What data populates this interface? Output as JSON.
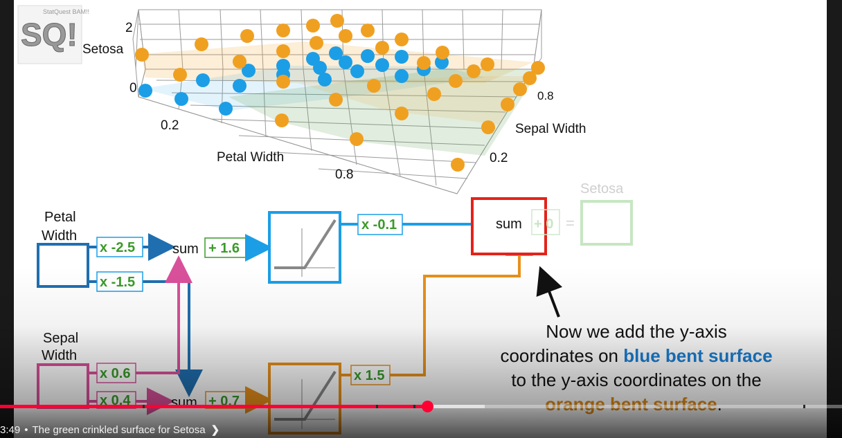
{
  "logo": {
    "text": "SQ!",
    "small_text": "StatQuest BAM!!"
  },
  "plot3d": {
    "z_tick_top": "2",
    "z_tick_bottom": "0",
    "z_label": "Setosa",
    "x_tick_1": "0.2",
    "x_tick_2": "0.8",
    "x_label": "Petal Width",
    "y_tick_1": "0.2",
    "y_tick_2": "0.8",
    "y_label": "Sepal Width"
  },
  "network": {
    "input_petal_label_1": "Petal",
    "input_petal_label_2": "Width",
    "input_sepal_label_1": "Sepal",
    "input_sepal_label_2": "Width",
    "w_petal_top": "x -2.5",
    "w_petal_bottom": "x -1.5",
    "w_sepal_top": "x 0.6",
    "w_sepal_bottom": "x 0.4",
    "sum_top": "sum",
    "bias_top": "+ 1.6",
    "sum_bottom": "sum",
    "bias_bottom": "+ 0.7",
    "w_out_top": "x -0.1",
    "w_out_bottom": "x 1.5",
    "final_sum": "sum",
    "final_bias": "+ 0",
    "equals": "=",
    "output_label": "Setosa"
  },
  "annotation": {
    "line1": "Now we add the y-axis",
    "line2_a": "coordinates on ",
    "line2_b": "blue bent surface",
    "line3": "to the y-axis coordinates on the",
    "line4_a": "orange bent surface",
    "line4_b": "."
  },
  "player": {
    "time": "3:49",
    "bullet": "•",
    "chapter_title": "The green crinkled surface for Setosa",
    "progress_fraction": 0.508
  },
  "colors": {
    "blue": "#1b9ee6",
    "orange": "#f0a020",
    "dark_orange": "#d98a1a",
    "dark_blue": "#1f6fb0",
    "pink": "#d9509a",
    "green": "#3a9a2a",
    "red": "#e2231a",
    "progress_red": "#ff0033"
  }
}
